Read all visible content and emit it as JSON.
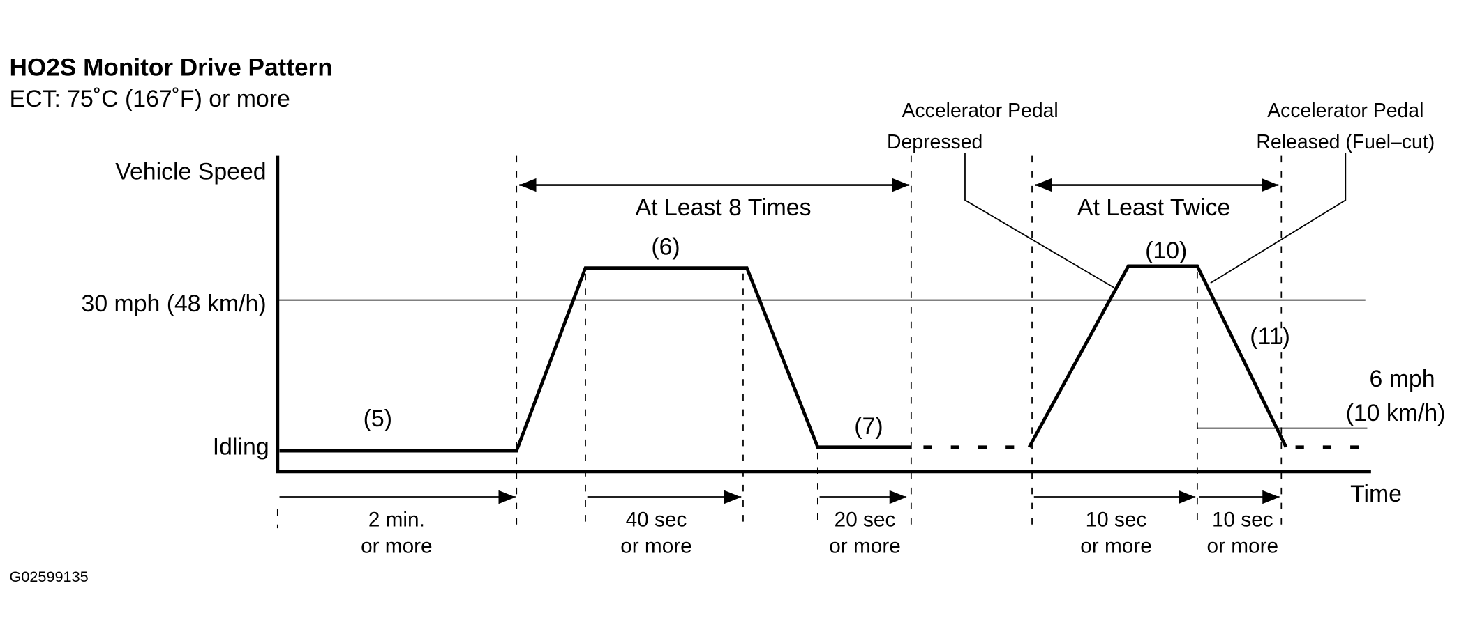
{
  "title": "HO2S Monitor Drive Pattern",
  "subtitle": "ECT: 75˚C (167˚F) or more",
  "axis": {
    "y_title": "Vehicle Speed",
    "speed_level": "30 mph (48 km/h)",
    "idle_level": "Idling",
    "x_title": "Time"
  },
  "steps": [
    "(5)",
    "(6)",
    "(7)",
    "(10)",
    "(11)"
  ],
  "repeats": [
    "At Least 8 Times",
    "At Least Twice"
  ],
  "threshold": [
    "6 mph",
    "(10 km/h)"
  ],
  "annotations": {
    "depressed": [
      "Accelerator Pedal",
      "Depressed"
    ],
    "released": [
      "Accelerator Pedal",
      "Released (Fuel–cut)"
    ]
  },
  "durations": [
    [
      "2 min.",
      "or more"
    ],
    [
      "40 sec",
      "or more"
    ],
    [
      "20 sec",
      "or more"
    ],
    [
      "10 sec",
      "or more"
    ],
    [
      "10 sec",
      "or more"
    ]
  ],
  "figure_id": "G02599135"
}
